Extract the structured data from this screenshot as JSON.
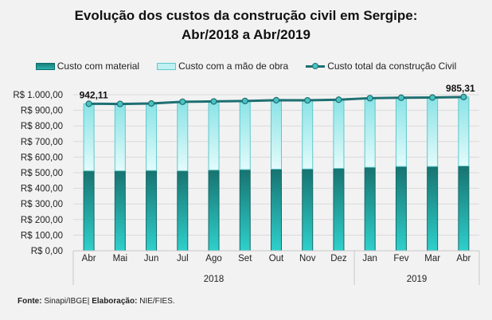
{
  "chart_data": {
    "type": "bar",
    "stacked": true,
    "title": "Evolução dos custos da construção civil em Sergipe:",
    "subtitle": "Abr/2018 a Abr/2019",
    "xlabel": "",
    "ylabel": "",
    "ylim": [
      0,
      1000
    ],
    "yticks": [
      "R$ 0,00",
      "R$ 100,00",
      "R$ 200,00",
      "R$ 300,00",
      "R$ 400,00",
      "R$ 500,00",
      "R$ 600,00",
      "R$ 700,00",
      "R$ 800,00",
      "R$ 900,00",
      "R$ 1.000,00"
    ],
    "ytick_values": [
      0,
      100,
      200,
      300,
      400,
      500,
      600,
      700,
      800,
      900,
      1000
    ],
    "grid": true,
    "legend_position": "top",
    "categories": [
      "Abr",
      "Mai",
      "Jun",
      "Jul",
      "Ago",
      "Set",
      "Out",
      "Nov",
      "Dez",
      "Jan",
      "Fev",
      "Mar",
      "Abr"
    ],
    "year_groups": [
      {
        "label": "2018",
        "count": 9
      },
      {
        "label": "2019",
        "count": 4
      }
    ],
    "series": [
      {
        "name": "Custo com material",
        "kind": "bar",
        "color": "#1e8a85",
        "values": [
          512,
          512,
          514,
          512,
          517,
          520,
          523,
          524,
          528,
          535,
          540,
          540,
          543
        ]
      },
      {
        "name": "Custo com a mão de obra",
        "kind": "bar",
        "color": "#c6f3f4",
        "values": [
          430.11,
          429,
          430,
          443,
          440,
          440,
          442,
          440,
          440,
          443,
          441,
          442,
          442.31
        ]
      },
      {
        "name": "Custo total da construção Civil",
        "kind": "line",
        "color": "#1e6f72",
        "values": [
          942.11,
          941,
          944,
          955,
          957,
          960,
          965,
          964,
          968,
          978,
          981,
          982,
          985.31
        ]
      }
    ],
    "annotations": [
      {
        "category_index": 0,
        "text": "942,11"
      },
      {
        "category_index": 12,
        "text": "985,31"
      }
    ]
  },
  "legend": {
    "material": "Custo com material",
    "labor": "Custo com a mão de obra",
    "total": "Custo total da construção Civil"
  },
  "footer": {
    "source_label": "Fonte:",
    "source_value": " Sinapi/IBGE| ",
    "elab_label": "Elaboração:",
    "elab_value": " NIE/FIES."
  }
}
